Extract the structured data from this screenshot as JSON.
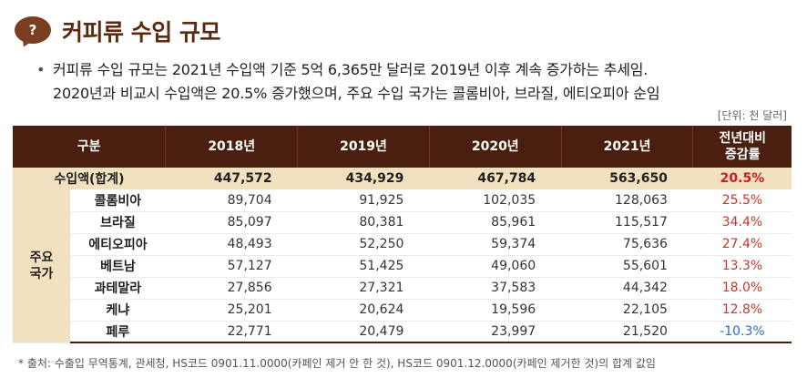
{
  "heading": {
    "icon": "question-speech-bubble-icon",
    "icon_glyph": "?",
    "title": "커피류 수입 규모"
  },
  "summary": {
    "bullet": "•",
    "line1": "커피류 수입 규모는 2021년 수입액 기준 5억 6,365만 달러로 2019년 이후 계속 증가하는 추세임.",
    "line2": "2020년과 비교시 수입액은 20.5% 증가했으며, 주요 수입 국가는 콜롬비아, 브라질, 에티오피아 순임"
  },
  "unit": "[단위: 천 달러]",
  "table": {
    "headers": [
      "구분",
      "2018년",
      "2019년",
      "2020년",
      "2021년",
      "전년대비",
      "증감률"
    ],
    "total": {
      "label": "수입액(합계)",
      "values": [
        "447,572",
        "434,929",
        "467,784",
        "563,650"
      ],
      "change": "20.5%"
    },
    "group_label_1": "주요",
    "group_label_2": "국가",
    "rows": [
      {
        "country": "콜롬비아",
        "values": [
          "89,704",
          "91,925",
          "102,035",
          "128,063"
        ],
        "change": "25.5%"
      },
      {
        "country": "브라질",
        "values": [
          "85,097",
          "80,381",
          "85,961",
          "115,517"
        ],
        "change": "34.4%"
      },
      {
        "country": "에티오피아",
        "values": [
          "48,493",
          "52,250",
          "59,374",
          "75,636"
        ],
        "change": "27.4%"
      },
      {
        "country": "베트남",
        "values": [
          "57,127",
          "51,425",
          "49,060",
          "55,601"
        ],
        "change": "13.3%"
      },
      {
        "country": "과테말라",
        "values": [
          "27,856",
          "27,321",
          "37,583",
          "44,342"
        ],
        "change": "18.0%"
      },
      {
        "country": "케냐",
        "values": [
          "25,201",
          "20,624",
          "19,596",
          "22,105"
        ],
        "change": "12.8%"
      },
      {
        "country": "페루",
        "values": [
          "22,771",
          "20,479",
          "23,997",
          "21,520"
        ],
        "change": "-10.3%"
      }
    ]
  },
  "footnote": "* 출처: 수출입 무역통계, 관세청, HS코드 0901.11.0000(카페인 제거 안 한 것), HS코드 0901.12.0000(카페인 제거한 것)의 합계 값임",
  "colors": {
    "header_bg": "#4b1f10",
    "highlight_bg": "#f2e1bf",
    "positive": "#c0392b",
    "negative": "#2b6fc2",
    "accent_icon": "#7a3e22"
  }
}
